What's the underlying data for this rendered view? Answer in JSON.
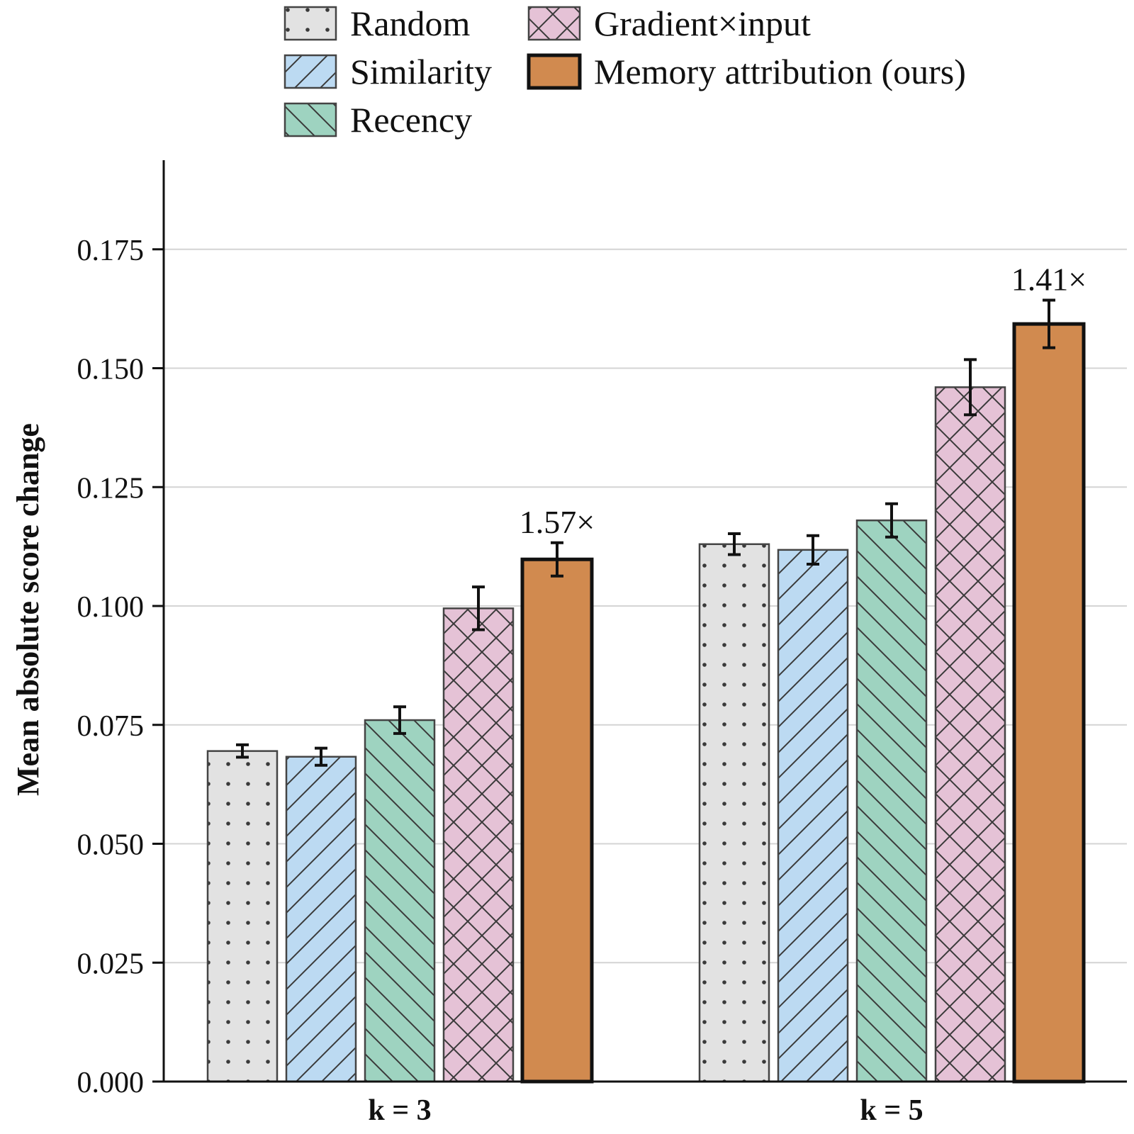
{
  "chart_data": {
    "type": "bar",
    "categories": [
      "k = 3",
      "k = 5"
    ],
    "ylabel": "Mean absolute score change",
    "xlabel": "",
    "ylim": [
      0,
      0.19
    ],
    "yticks": [
      "0.000",
      "0.025",
      "0.050",
      "0.075",
      "0.100",
      "0.125",
      "0.150",
      "0.175"
    ],
    "grid": "horizontal",
    "legend_position": "top",
    "series": [
      {
        "name": "Random",
        "values": [
          0.0695,
          0.113
        ],
        "errors": [
          0.0013,
          0.0022
        ],
        "color": "#e2e2e2",
        "pattern": "dots"
      },
      {
        "name": "Similarity",
        "values": [
          0.0683,
          0.1118
        ],
        "errors": [
          0.0018,
          0.003
        ],
        "color": "#bcdaf2",
        "pattern": "forward-diagonal"
      },
      {
        "name": "Recency",
        "values": [
          0.076,
          0.118
        ],
        "errors": [
          0.0028,
          0.0035
        ],
        "color": "#9ed3c0",
        "pattern": "back-diagonal"
      },
      {
        "name": "Gradient×input",
        "values": [
          0.0995,
          0.146
        ],
        "errors": [
          0.0045,
          0.0058
        ],
        "color": "#e5c2d6",
        "pattern": "crosshatch"
      },
      {
        "name": "Memory attribution (ours)",
        "values": [
          0.1098,
          0.1593
        ],
        "errors": [
          0.0035,
          0.005
        ],
        "color": "#d18a4f",
        "pattern": "solid"
      }
    ],
    "annotations": [
      {
        "category": "k = 3",
        "series": "Memory attribution (ours)",
        "text": "1.57×"
      },
      {
        "category": "k = 5",
        "series": "Memory attribution (ours)",
        "text": "1.41×"
      }
    ]
  }
}
